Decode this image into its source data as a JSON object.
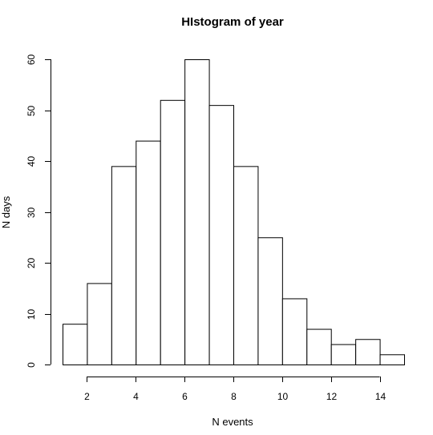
{
  "chart_data": {
    "type": "bar",
    "title": "HIstogram of year",
    "xlabel": "N events",
    "ylabel": "N days",
    "bins": [
      {
        "from": 1,
        "to": 2,
        "count": 8
      },
      {
        "from": 2,
        "to": 3,
        "count": 16
      },
      {
        "from": 3,
        "to": 4,
        "count": 39
      },
      {
        "from": 4,
        "to": 5,
        "count": 44
      },
      {
        "from": 5,
        "to": 6,
        "count": 52
      },
      {
        "from": 6,
        "to": 7,
        "count": 60
      },
      {
        "from": 7,
        "to": 8,
        "count": 51
      },
      {
        "from": 8,
        "to": 9,
        "count": 39
      },
      {
        "from": 9,
        "to": 10,
        "count": 25
      },
      {
        "from": 10,
        "to": 11,
        "count": 13
      },
      {
        "from": 11,
        "to": 12,
        "count": 7
      },
      {
        "from": 12,
        "to": 13,
        "count": 4
      },
      {
        "from": 13,
        "to": 14,
        "count": 5
      },
      {
        "from": 14,
        "to": 15,
        "count": 2
      }
    ],
    "xlim": [
      1,
      15
    ],
    "ylim": [
      0,
      60
    ],
    "xticks": [
      2,
      4,
      6,
      8,
      10,
      12,
      14
    ],
    "yticks": [
      0,
      10,
      20,
      30,
      40,
      50,
      60
    ],
    "grid": false,
    "bar_fill": "#ffffff",
    "bar_stroke": "#000000"
  }
}
